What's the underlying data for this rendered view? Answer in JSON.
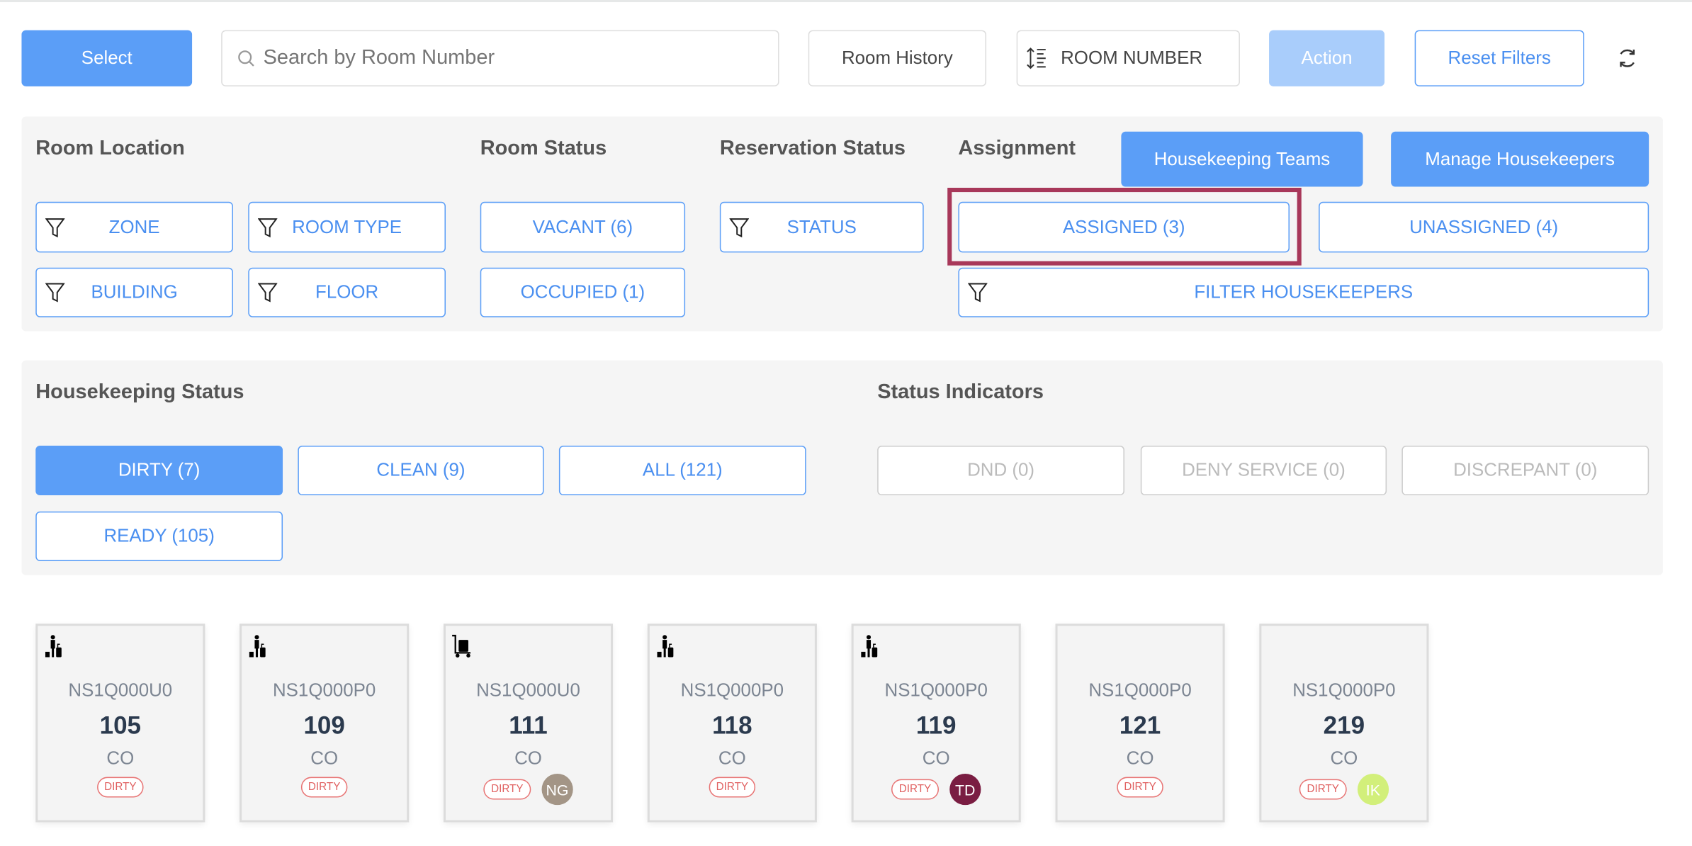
{
  "toolbar": {
    "select": "Select",
    "search_placeholder": "Search by Room Number",
    "room_history": "Room History",
    "sort": "ROOM NUMBER",
    "action": "Action",
    "reset": "Reset Filters"
  },
  "filters": {
    "room_location": {
      "title": "Room Location",
      "zone": "ZONE",
      "room_type": "ROOM TYPE",
      "building": "BUILDING",
      "floor": "FLOOR"
    },
    "room_status": {
      "title": "Room Status",
      "vacant": "VACANT (6)",
      "occupied": "OCCUPIED (1)"
    },
    "reservation_status": {
      "title": "Reservation Status",
      "status": "STATUS"
    },
    "assignment": {
      "title": "Assignment",
      "teams": "Housekeeping Teams",
      "manage": "Manage Housekeepers",
      "assigned": "ASSIGNED (3)",
      "unassigned": "UNASSIGNED (4)",
      "filter_housekeepers": "FILTER HOUSEKEEPERS"
    }
  },
  "housekeeping": {
    "title": "Housekeeping Status",
    "dirty": "DIRTY (7)",
    "clean": "CLEAN (9)",
    "all": "ALL (121)",
    "ready": "READY (105)"
  },
  "indicators": {
    "title": "Status Indicators",
    "dnd": "DND (0)",
    "deny": "DENY SERVICE (0)",
    "discrepant": "DISCREPANT (0)"
  },
  "colors": {
    "primary": "#5b9ef7",
    "highlight": "#a8385a",
    "dirty": "#e87575"
  },
  "rooms": [
    {
      "icon": "guest-luggage-icon",
      "code": "NS1Q000U0",
      "number": "105",
      "status": "CO",
      "badge": "DIRTY"
    },
    {
      "icon": "guest-luggage-icon",
      "code": "NS1Q000P0",
      "number": "109",
      "status": "CO",
      "badge": "DIRTY"
    },
    {
      "icon": "luggage-cart-icon",
      "code": "NS1Q000U0",
      "number": "111",
      "status": "CO",
      "badge": "DIRTY",
      "assignee": "NG",
      "assignee_color": "#a39586"
    },
    {
      "icon": "guest-luggage-icon",
      "code": "NS1Q000P0",
      "number": "118",
      "status": "CO",
      "badge": "DIRTY"
    },
    {
      "icon": "guest-luggage-icon",
      "code": "NS1Q000P0",
      "number": "119",
      "status": "CO",
      "badge": "DIRTY",
      "assignee": "TD",
      "assignee_color": "#7a1d42"
    },
    {
      "code": "NS1Q000P0",
      "number": "121",
      "status": "CO",
      "badge": "DIRTY"
    },
    {
      "code": "NS1Q000P0",
      "number": "219",
      "status": "CO",
      "badge": "DIRTY",
      "assignee": "IK",
      "assignee_color": "#d2ef7a"
    }
  ]
}
